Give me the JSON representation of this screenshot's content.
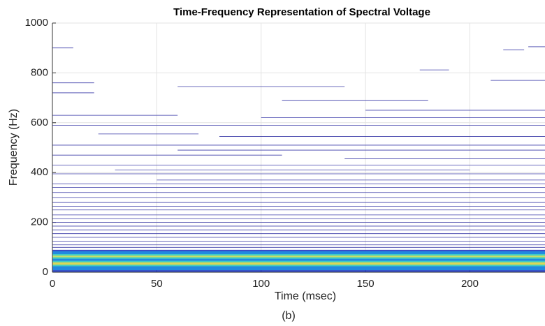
{
  "chart_data": {
    "type": "contour",
    "title": "Time-Frequency Representation of Spectral Voltage",
    "x_label": "Time (msec)",
    "y_label": "Frequency (Hz)",
    "caption": "(b)",
    "xlim": [
      0,
      236
    ],
    "ylim": [
      0,
      1000
    ],
    "xticks": [
      0,
      50,
      100,
      150,
      200
    ],
    "yticks": [
      0,
      200,
      400,
      600,
      800,
      1000
    ],
    "grid": true,
    "line_color": "#3b3ba8",
    "contours": [
      {
        "y": 900,
        "x": [
          0,
          10
        ]
      },
      {
        "y": 892,
        "x": [
          216,
          226
        ]
      },
      {
        "y": 905,
        "x": [
          228,
          236
        ]
      },
      {
        "y": 812,
        "x": [
          176,
          190
        ]
      },
      {
        "y": 760,
        "x": [
          0,
          20
        ]
      },
      {
        "y": 745,
        "x": [
          60,
          140
        ]
      },
      {
        "y": 770,
        "x": [
          210,
          236
        ]
      },
      {
        "y": 720,
        "x": [
          0,
          20
        ]
      },
      {
        "y": 690,
        "x": [
          110,
          180
        ]
      },
      {
        "y": 650,
        "x": [
          150,
          236
        ]
      },
      {
        "y": 630,
        "x": [
          0,
          60
        ]
      },
      {
        "y": 620,
        "x": [
          100,
          236
        ]
      },
      {
        "y": 590,
        "x": [
          0,
          236
        ]
      },
      {
        "y": 555,
        "x": [
          22,
          70
        ]
      },
      {
        "y": 545,
        "x": [
          80,
          236
        ]
      },
      {
        "y": 510,
        "x": [
          0,
          236
        ]
      },
      {
        "y": 490,
        "x": [
          60,
          236
        ]
      },
      {
        "y": 470,
        "x": [
          0,
          110
        ]
      },
      {
        "y": 455,
        "x": [
          140,
          236
        ]
      },
      {
        "y": 430,
        "x": [
          0,
          236
        ]
      },
      {
        "y": 410,
        "x": [
          30,
          200
        ]
      },
      {
        "y": 395,
        "x": [
          0,
          236
        ]
      },
      {
        "y": 370,
        "x": [
          50,
          236
        ]
      },
      {
        "y": 355,
        "x": [
          0,
          236
        ]
      },
      {
        "y": 340,
        "x": [
          0,
          236
        ]
      },
      {
        "y": 320,
        "x": [
          0,
          236
        ]
      },
      {
        "y": 300,
        "x": [
          0,
          236
        ]
      },
      {
        "y": 280,
        "x": [
          0,
          236
        ]
      },
      {
        "y": 265,
        "x": [
          0,
          236
        ]
      },
      {
        "y": 250,
        "x": [
          0,
          236
        ]
      },
      {
        "y": 230,
        "x": [
          0,
          236
        ]
      },
      {
        "y": 215,
        "x": [
          0,
          236
        ]
      },
      {
        "y": 200,
        "x": [
          0,
          236
        ]
      },
      {
        "y": 185,
        "x": [
          0,
          236
        ]
      },
      {
        "y": 170,
        "x": [
          0,
          236
        ]
      },
      {
        "y": 155,
        "x": [
          0,
          236
        ]
      },
      {
        "y": 140,
        "x": [
          0,
          236
        ]
      },
      {
        "y": 125,
        "x": [
          0,
          236
        ]
      },
      {
        "y": 110,
        "x": [
          0,
          236
        ]
      },
      {
        "y": 100,
        "x": [
          0,
          236
        ]
      }
    ],
    "bands": [
      {
        "y": [
          0,
          90
        ],
        "color": "#2438c0"
      },
      {
        "y": [
          8,
          84
        ],
        "color": "#1f8fe2"
      },
      {
        "y": [
          24,
          46
        ],
        "color": "#44d3c2"
      },
      {
        "y": [
          30,
          40
        ],
        "color": "#ead84a"
      },
      {
        "y": [
          54,
          73
        ],
        "color": "#44d3c2"
      },
      {
        "y": [
          60,
          67
        ],
        "color": "#d6e05c"
      }
    ]
  }
}
